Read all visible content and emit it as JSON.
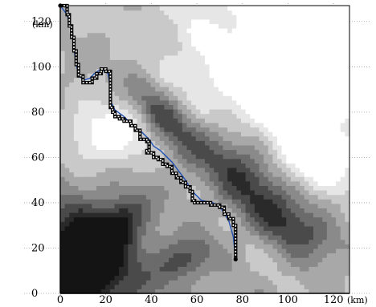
{
  "chart_data": {
    "type": "heatmap",
    "title": "",
    "xlabel": "(km)",
    "ylabel": "(km)",
    "xlim": [
      0,
      127
    ],
    "ylim": [
      0,
      127
    ],
    "x_ticks": [
      0,
      20,
      40,
      60,
      80,
      100,
      120
    ],
    "y_ticks": [
      0,
      20,
      40,
      60,
      80,
      100,
      120
    ],
    "grid": true,
    "colormap": [
      "#ffffff",
      "#e6e6e6",
      "#c9c9c9",
      "#a8a8a8",
      "#8a8a8a",
      "#6b6b6b",
      "#4a4a4a",
      "#2a2a2a",
      "#141414"
    ],
    "terrain": {
      "description_levels": 9,
      "features": [
        {
          "kind": "valley",
          "x": 82,
          "y": 52,
          "sx": 22,
          "sy": 9,
          "angle": -42,
          "depth": 0.55
        },
        {
          "kind": "valley",
          "x": 45,
          "y": 78,
          "sx": 14,
          "sy": 6,
          "angle": -50,
          "depth": 0.45
        },
        {
          "kind": "valley",
          "x": 6,
          "y": 12,
          "sx": 18,
          "sy": 16,
          "angle": 20,
          "depth": 0.95
        },
        {
          "kind": "valley",
          "x": 22,
          "y": 28,
          "sx": 14,
          "sy": 6,
          "angle": 45,
          "depth": 0.45
        },
        {
          "kind": "valley",
          "x": 105,
          "y": 28,
          "sx": 16,
          "sy": 7,
          "angle": -30,
          "depth": 0.35
        },
        {
          "kind": "valley",
          "x": 55,
          "y": 15,
          "sx": 10,
          "sy": 6,
          "angle": 30,
          "depth": 0.35
        },
        {
          "kind": "ridge",
          "x": 95,
          "y": 100,
          "sx": 26,
          "sy": 20,
          "angle": 0,
          "depth": 0.5
        },
        {
          "kind": "ridge",
          "x": 20,
          "y": 70,
          "sx": 14,
          "sy": 10,
          "angle": 0,
          "depth": 0.4
        },
        {
          "kind": "ridge",
          "x": 110,
          "y": 60,
          "sx": 12,
          "sy": 10,
          "angle": 0,
          "depth": 0.4
        }
      ]
    },
    "series": [
      {
        "style": "line",
        "color": "#1f4fb5",
        "x": [
          0,
          3,
          5,
          6,
          7,
          8,
          10,
          13,
          15,
          18,
          21,
          22,
          22,
          24,
          28,
          32,
          36,
          39,
          41,
          44,
          46,
          49,
          52,
          55,
          58,
          62,
          67,
          71,
          74,
          76,
          77
        ],
        "y": [
          127,
          123,
          116,
          108,
          101,
          97,
          94,
          95,
          97,
          99,
          97,
          91,
          85,
          81,
          78,
          74,
          71,
          68,
          65,
          63,
          61,
          58,
          54,
          50,
          45,
          41,
          40,
          37,
          32,
          25,
          15
        ]
      },
      {
        "style": "stepped",
        "color": "#000000",
        "marker_fill": "#ffffff",
        "x": [
          0,
          3,
          4,
          5,
          6,
          7,
          8,
          10,
          12,
          14,
          16,
          18,
          20,
          22,
          22,
          22,
          23,
          24,
          26,
          28,
          31,
          33,
          35,
          38,
          39,
          39,
          38,
          40,
          41,
          43,
          45,
          47,
          49,
          51,
          53,
          55,
          57,
          58,
          59,
          62,
          66,
          70,
          72,
          74,
          76,
          77,
          77
        ],
        "y": [
          127,
          123,
          118,
          113,
          107,
          101,
          96,
          93,
          93,
          95,
          97,
          99,
          98,
          95,
          88,
          82,
          80,
          78,
          77,
          76,
          74,
          72,
          68,
          67,
          66,
          63,
          62,
          62,
          60,
          59,
          57,
          56,
          53,
          51,
          49,
          47,
          45,
          41,
          40,
          40,
          39,
          38,
          35,
          33,
          30,
          25,
          15
        ]
      }
    ],
    "start_point": {
      "x": 0,
      "y": 127
    },
    "end_point": {
      "x": 77,
      "y": 15
    }
  }
}
